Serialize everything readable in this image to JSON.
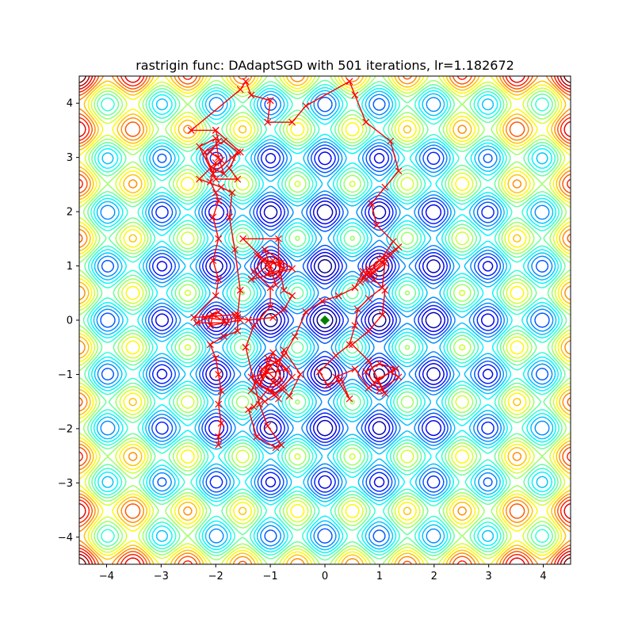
{
  "chart_data": {
    "type": "contour",
    "title": "rastrigin func: DAdaptSGD with 501 iterations, lr=1.182672",
    "xlabel": "",
    "ylabel": "",
    "xlim": [
      -4.5,
      4.5
    ],
    "ylim": [
      -4.5,
      4.5
    ],
    "x_ticks": [
      -4,
      -3,
      -2,
      -1,
      0,
      1,
      2,
      3,
      4
    ],
    "y_ticks": [
      -4,
      -3,
      -2,
      -1,
      0,
      1,
      2,
      3,
      4
    ],
    "x_tick_labels": [
      "−4",
      "−3",
      "−2",
      "−1",
      "0",
      "1",
      "2",
      "3",
      "4"
    ],
    "y_tick_labels": [
      "−4",
      "−3",
      "−2",
      "−1",
      "0",
      "1",
      "2",
      "3",
      "4"
    ],
    "grid": false,
    "colormap": "jet",
    "function": "rastrigin",
    "optimum": {
      "x": 0,
      "y": 0,
      "color": "#008000",
      "marker": "diamond"
    },
    "path_color": "#ff0000",
    "path": [
      [
        -2.0,
        3.5
      ],
      [
        -1.95,
        3.3
      ],
      [
        -2.1,
        3.1
      ],
      [
        -1.9,
        2.95
      ],
      [
        -2.05,
        2.8
      ],
      [
        -1.85,
        2.7
      ],
      [
        -1.95,
        3.0
      ],
      [
        -2.0,
        3.35
      ],
      [
        -2.3,
        3.2
      ],
      [
        -2.0,
        2.6
      ],
      [
        -1.6,
        2.6
      ],
      [
        -1.75,
        2.8
      ],
      [
        -1.6,
        3.1
      ],
      [
        -1.85,
        3.3
      ],
      [
        -2.2,
        3.1
      ],
      [
        -2.05,
        2.7
      ],
      [
        -1.7,
        3.0
      ],
      [
        -1.55,
        3.1
      ],
      [
        -2.0,
        3.5
      ],
      [
        -2.45,
        3.5
      ],
      [
        -1.55,
        4.25
      ],
      [
        -1.45,
        4.4
      ],
      [
        -1.35,
        4.15
      ],
      [
        -1.0,
        4.05
      ],
      [
        -1.05,
        3.65
      ],
      [
        -0.6,
        3.65
      ],
      [
        -0.35,
        3.95
      ],
      [
        0.45,
        4.4
      ],
      [
        0.55,
        4.15
      ],
      [
        0.75,
        3.65
      ],
      [
        1.2,
        3.3
      ],
      [
        1.35,
        2.75
      ],
      [
        1.1,
        2.45
      ],
      [
        0.85,
        2.15
      ],
      [
        0.95,
        1.75
      ],
      [
        1.25,
        1.45
      ],
      [
        1.05,
        1.15
      ],
      [
        0.8,
        0.95
      ],
      [
        0.65,
        0.7
      ],
      [
        1.0,
        1.1
      ],
      [
        1.35,
        1.35
      ],
      [
        0.9,
        0.9
      ],
      [
        0.7,
        0.8
      ],
      [
        1.2,
        1.2
      ],
      [
        0.85,
        0.85
      ],
      [
        1.3,
        1.3
      ],
      [
        0.75,
        0.75
      ],
      [
        1.1,
        1.05
      ],
      [
        1.05,
        0.6
      ],
      [
        0.8,
        0.4
      ],
      [
        0.6,
        0.2
      ],
      [
        0.55,
        -0.1
      ],
      [
        0.45,
        -0.45
      ],
      [
        0.2,
        -0.65
      ],
      [
        -0.1,
        -0.95
      ],
      [
        0.05,
        -1.2
      ],
      [
        0.3,
        -1.1
      ],
      [
        0.45,
        -1.45
      ],
      [
        0.2,
        -1.05
      ],
      [
        0.55,
        -0.9
      ],
      [
        0.8,
        -1.25
      ],
      [
        1.2,
        -0.95
      ],
      [
        1.35,
        -1.05
      ],
      [
        1.0,
        -1.3
      ],
      [
        0.75,
        -0.95
      ],
      [
        1.0,
        -0.8
      ],
      [
        1.3,
        -0.9
      ],
      [
        0.95,
        -1.1
      ],
      [
        1.1,
        -1.35
      ],
      [
        0.8,
        -0.75
      ],
      [
        0.5,
        -0.45
      ],
      [
        0.8,
        -0.2
      ],
      [
        1.05,
        0.1
      ],
      [
        1.1,
        0.55
      ],
      [
        0.9,
        0.75
      ],
      [
        0.7,
        0.9
      ],
      [
        0.55,
        0.6
      ],
      [
        0.25,
        0.45
      ],
      [
        -0.05,
        0.35
      ],
      [
        -0.35,
        0.15
      ],
      [
        -0.55,
        -0.3
      ],
      [
        -0.75,
        -0.65
      ],
      [
        -1.0,
        -0.85
      ],
      [
        -1.25,
        -1.15
      ],
      [
        -0.9,
        -1.35
      ],
      [
        -0.6,
        -1.05
      ],
      [
        -0.85,
        -0.75
      ],
      [
        -1.15,
        -0.9
      ],
      [
        -1.35,
        -1.3
      ],
      [
        -1.1,
        -1.5
      ],
      [
        -0.75,
        -1.25
      ],
      [
        -1.05,
        -0.95
      ],
      [
        -1.2,
        -1.2
      ],
      [
        -0.95,
        -0.6
      ],
      [
        -0.8,
        -1.1
      ],
      [
        -1.0,
        -1.3
      ],
      [
        -0.85,
        -1.45
      ],
      [
        -1.35,
        -1.05
      ],
      [
        -0.7,
        -0.9
      ],
      [
        -1.05,
        -0.7
      ],
      [
        -1.1,
        -1.0
      ],
      [
        -0.65,
        -1.4
      ],
      [
        -0.45,
        -1.0
      ],
      [
        -0.75,
        -0.55
      ],
      [
        -0.95,
        -1.15
      ],
      [
        -1.3,
        -1.6
      ],
      [
        -1.4,
        -1.65
      ],
      [
        -1.25,
        -2.15
      ],
      [
        -0.9,
        -2.35
      ],
      [
        -0.8,
        -2.3
      ],
      [
        -1.05,
        -1.95
      ],
      [
        -1.2,
        -1.55
      ],
      [
        -1.45,
        -0.5
      ],
      [
        -1.3,
        -0.1
      ],
      [
        -1.0,
        0.25
      ],
      [
        -1.0,
        0.6
      ],
      [
        -1.3,
        0.9
      ],
      [
        -1.15,
        1.1
      ],
      [
        -0.8,
        1.05
      ],
      [
        -0.85,
        0.8
      ],
      [
        -1.25,
        1.2
      ],
      [
        -0.75,
        0.95
      ],
      [
        -1.05,
        0.85
      ],
      [
        -0.95,
        1.1
      ],
      [
        -1.35,
        0.75
      ],
      [
        -0.6,
        0.95
      ],
      [
        -1.1,
        1.3
      ],
      [
        -0.9,
        0.65
      ],
      [
        -1.0,
        1.0
      ],
      [
        -1.5,
        1.5
      ],
      [
        -0.85,
        1.5
      ],
      [
        -0.85,
        1.05
      ],
      [
        -0.75,
        0.55
      ],
      [
        -0.6,
        0.45
      ],
      [
        -0.75,
        0.2
      ],
      [
        -0.95,
        0.05
      ],
      [
        -1.4,
        0.0
      ],
      [
        -1.6,
        0.05
      ],
      [
        -1.85,
        0.0
      ],
      [
        -2.2,
        0.05
      ],
      [
        -1.95,
        0.15
      ],
      [
        -2.35,
        -0.05
      ],
      [
        -1.8,
        -0.05
      ],
      [
        -2.05,
        0.1
      ],
      [
        -2.1,
        -0.1
      ],
      [
        -1.55,
        0.0
      ],
      [
        -1.65,
        0.1
      ],
      [
        -2.4,
        0.05
      ],
      [
        -2.0,
        0.45
      ],
      [
        -1.95,
        0.75
      ],
      [
        -2.05,
        1.1
      ],
      [
        -1.95,
        1.5
      ],
      [
        -2.05,
        1.9
      ],
      [
        -1.95,
        2.2
      ],
      [
        -2.0,
        2.35
      ],
      [
        -2.1,
        2.55
      ],
      [
        -2.0,
        2.9
      ],
      [
        -2.3,
        2.6
      ],
      [
        -1.9,
        2.45
      ],
      [
        -1.7,
        2.35
      ],
      [
        -1.75,
        1.9
      ],
      [
        -1.65,
        1.3
      ],
      [
        -1.55,
        0.55
      ],
      [
        -1.6,
        0.1
      ],
      [
        -1.6,
        -0.2
      ],
      [
        -1.85,
        -0.3
      ],
      [
        -2.1,
        -0.45
      ],
      [
        -2.0,
        -0.7
      ],
      [
        -1.95,
        -1.0
      ],
      [
        -1.9,
        -1.3
      ],
      [
        -1.95,
        -1.55
      ],
      [
        -1.9,
        -1.9
      ],
      [
        -1.95,
        -2.15
      ],
      [
        -1.95,
        -2.3
      ]
    ]
  }
}
